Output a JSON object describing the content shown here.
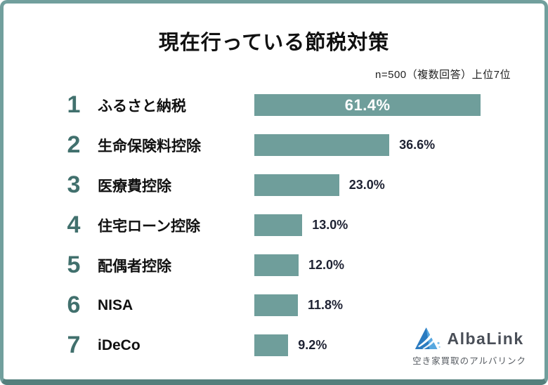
{
  "chart_data": {
    "type": "bar",
    "orientation": "horizontal",
    "title": "現在行っている節税対策",
    "note": "n=500（複数回答）上位7位",
    "categories": [
      "ふるさと納税",
      "生命保険料控除",
      "医療費控除",
      "住宅ローン控除",
      "配偶者控除",
      "NISA",
      "iDeCo"
    ],
    "values": [
      61.4,
      36.6,
      23.0,
      13.0,
      12.0,
      11.8,
      9.2
    ],
    "value_suffix": "%",
    "xlim": [
      0,
      65
    ],
    "grid": false,
    "legend": "none",
    "bar_color": "#6f9e9b",
    "rank_color": "#41706d",
    "value_label_color": "#1e2233",
    "rows": [
      {
        "rank": "1",
        "label": "ふるさと納税",
        "value": 61.4,
        "value_label": "61.4%"
      },
      {
        "rank": "2",
        "label": "生命保険料控除",
        "value": 36.6,
        "value_label": "36.6%"
      },
      {
        "rank": "3",
        "label": "医療費控除",
        "value": 23.0,
        "value_label": "23.0%"
      },
      {
        "rank": "4",
        "label": "住宅ローン控除",
        "value": 13.0,
        "value_label": "13.0%"
      },
      {
        "rank": "5",
        "label": "配偶者控除",
        "value": 12.0,
        "value_label": "12.0%"
      },
      {
        "rank": "6",
        "label": "NISA",
        "value": 11.8,
        "value_label": "11.8%"
      },
      {
        "rank": "7",
        "label": "iDeCo",
        "value": 9.2,
        "value_label": "9.2%"
      }
    ]
  },
  "logo": {
    "name": "AlbaLink",
    "tagline": "空き家買取のアルバリンク"
  }
}
